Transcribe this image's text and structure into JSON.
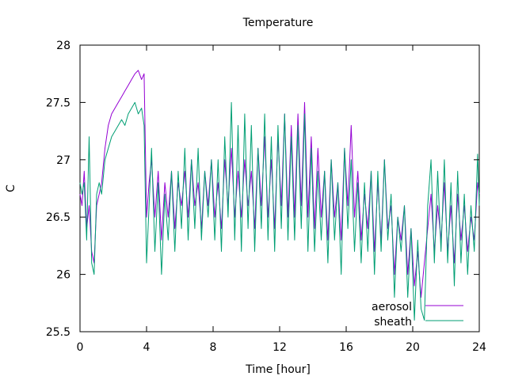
{
  "chart_data": {
    "type": "line",
    "title": "Temperature",
    "xlabel": "Time [hour]",
    "ylabel": "C",
    "xlim": [
      0,
      24
    ],
    "ylim": [
      25.5,
      28
    ],
    "xticks": [
      0,
      4,
      8,
      12,
      16,
      20,
      24
    ],
    "yticks": [
      25.5,
      26,
      26.5,
      27,
      27.5,
      28
    ],
    "ytick_labels": [
      "25.5",
      "26",
      "26.5",
      "27",
      "27.5",
      "28"
    ],
    "grid": false,
    "legend_position": "bottom-right",
    "series": [
      {
        "name": "aerosol",
        "color": "#9400d3",
        "x": [
          0.0,
          0.12,
          0.25,
          0.4,
          0.55,
          0.7,
          0.85,
          1.0,
          1.15,
          1.3,
          1.5,
          1.7,
          1.9,
          2.1,
          2.3,
          2.5,
          2.7,
          2.9,
          3.1,
          3.3,
          3.5,
          3.7,
          3.85,
          4.0,
          4.15,
          4.3,
          4.5,
          4.7,
          4.9,
          5.1,
          5.3,
          5.5,
          5.7,
          5.9,
          6.1,
          6.3,
          6.5,
          6.7,
          6.9,
          7.1,
          7.3,
          7.5,
          7.7,
          7.9,
          8.1,
          8.3,
          8.5,
          8.7,
          8.9,
          9.1,
          9.3,
          9.5,
          9.7,
          9.9,
          10.1,
          10.3,
          10.5,
          10.7,
          10.9,
          11.1,
          11.3,
          11.5,
          11.7,
          11.9,
          12.1,
          12.3,
          12.5,
          12.7,
          12.9,
          13.1,
          13.3,
          13.5,
          13.7,
          13.9,
          14.1,
          14.3,
          14.5,
          14.7,
          14.9,
          15.1,
          15.3,
          15.5,
          15.7,
          15.9,
          16.1,
          16.3,
          16.5,
          16.7,
          16.9,
          17.1,
          17.3,
          17.5,
          17.7,
          17.9,
          18.1,
          18.3,
          18.5,
          18.7,
          18.9,
          19.1,
          19.3,
          19.5,
          19.7,
          19.9,
          20.1,
          20.3,
          20.5,
          20.7,
          20.9,
          21.1,
          21.3,
          21.5,
          21.7,
          21.9,
          22.1,
          22.3,
          22.5,
          22.7,
          22.9,
          23.1,
          23.3,
          23.5,
          23.7,
          23.9,
          24.0
        ],
        "values": [
          26.7,
          26.6,
          26.9,
          26.4,
          26.6,
          26.2,
          26.1,
          26.6,
          26.7,
          26.8,
          27.1,
          27.3,
          27.4,
          27.45,
          27.5,
          27.55,
          27.6,
          27.65,
          27.7,
          27.75,
          27.78,
          27.7,
          27.75,
          26.5,
          26.8,
          27.0,
          26.5,
          26.9,
          26.3,
          26.8,
          26.5,
          26.9,
          26.4,
          26.8,
          26.6,
          26.9,
          26.5,
          27.0,
          26.6,
          26.8,
          26.4,
          26.9,
          26.6,
          27.0,
          26.5,
          26.8,
          26.4,
          27.0,
          26.6,
          27.1,
          26.5,
          26.9,
          26.5,
          27.0,
          26.6,
          26.9,
          26.4,
          27.1,
          26.6,
          27.2,
          26.5,
          27.0,
          26.4,
          27.2,
          26.6,
          27.4,
          26.5,
          27.3,
          26.5,
          27.4,
          26.6,
          27.5,
          26.5,
          27.2,
          26.4,
          27.1,
          26.5,
          26.9,
          26.3,
          27.0,
          26.5,
          26.8,
          26.3,
          27.1,
          26.6,
          27.3,
          26.5,
          26.9,
          26.3,
          26.7,
          26.4,
          26.9,
          26.2,
          26.8,
          26.3,
          27.0,
          26.4,
          26.6,
          26.0,
          26.5,
          26.3,
          26.6,
          26.0,
          26.4,
          25.9,
          26.2,
          25.8,
          26.1,
          26.4,
          26.7,
          26.2,
          26.6,
          26.3,
          26.8,
          26.2,
          26.6,
          26.1,
          26.7,
          26.3,
          26.6,
          26.2,
          26.5,
          26.3,
          26.8,
          26.7
        ]
      },
      {
        "name": "sheath",
        "color": "#009e73",
        "x": [
          0.0,
          0.12,
          0.25,
          0.4,
          0.55,
          0.7,
          0.85,
          1.0,
          1.15,
          1.3,
          1.5,
          1.7,
          1.9,
          2.1,
          2.3,
          2.5,
          2.7,
          2.9,
          3.1,
          3.3,
          3.5,
          3.7,
          3.85,
          4.0,
          4.15,
          4.3,
          4.5,
          4.7,
          4.9,
          5.1,
          5.3,
          5.5,
          5.7,
          5.9,
          6.1,
          6.3,
          6.5,
          6.7,
          6.9,
          7.1,
          7.3,
          7.5,
          7.7,
          7.9,
          8.1,
          8.3,
          8.5,
          8.7,
          8.9,
          9.1,
          9.3,
          9.5,
          9.7,
          9.9,
          10.1,
          10.3,
          10.5,
          10.7,
          10.9,
          11.1,
          11.3,
          11.5,
          11.7,
          11.9,
          12.1,
          12.3,
          12.5,
          12.7,
          12.9,
          13.1,
          13.3,
          13.5,
          13.7,
          13.9,
          14.1,
          14.3,
          14.5,
          14.7,
          14.9,
          15.1,
          15.3,
          15.5,
          15.7,
          15.9,
          16.1,
          16.3,
          16.5,
          16.7,
          16.9,
          17.1,
          17.3,
          17.5,
          17.7,
          17.9,
          18.1,
          18.3,
          18.5,
          18.7,
          18.9,
          19.1,
          19.3,
          19.5,
          19.7,
          19.9,
          20.1,
          20.3,
          20.5,
          20.7,
          20.9,
          21.1,
          21.3,
          21.5,
          21.7,
          21.9,
          22.1,
          22.3,
          22.5,
          22.7,
          22.9,
          23.1,
          23.3,
          23.5,
          23.7,
          23.9,
          24.0
        ],
        "values": [
          26.8,
          26.7,
          26.8,
          26.3,
          27.2,
          26.1,
          26.0,
          26.7,
          26.8,
          26.7,
          27.0,
          27.1,
          27.2,
          27.25,
          27.3,
          27.35,
          27.3,
          27.4,
          27.45,
          27.5,
          27.4,
          27.45,
          27.3,
          26.1,
          26.6,
          27.1,
          26.2,
          26.8,
          26.0,
          26.7,
          26.3,
          26.9,
          26.2,
          26.9,
          26.4,
          27.1,
          26.3,
          27.0,
          26.4,
          27.1,
          26.3,
          26.9,
          26.5,
          27.0,
          26.3,
          27.0,
          26.2,
          27.2,
          26.5,
          27.5,
          26.3,
          27.3,
          26.2,
          27.4,
          26.4,
          27.3,
          26.2,
          27.1,
          26.4,
          27.4,
          26.3,
          27.2,
          26.2,
          27.3,
          26.4,
          27.4,
          26.3,
          27.2,
          26.3,
          27.3,
          26.4,
          27.4,
          26.2,
          27.1,
          26.2,
          26.9,
          26.3,
          26.9,
          26.1,
          27.0,
          26.3,
          26.8,
          26.0,
          27.1,
          26.4,
          27.0,
          26.2,
          26.8,
          26.1,
          26.8,
          26.2,
          26.9,
          26.0,
          26.9,
          26.2,
          27.0,
          26.3,
          26.7,
          25.8,
          26.5,
          26.2,
          26.6,
          25.8,
          26.4,
          25.6,
          26.3,
          25.7,
          25.6,
          26.6,
          27.0,
          26.1,
          26.9,
          26.2,
          27.0,
          26.1,
          26.8,
          25.9,
          26.9,
          26.1,
          26.7,
          26.0,
          26.6,
          26.2,
          27.05,
          26.6
        ]
      }
    ]
  }
}
